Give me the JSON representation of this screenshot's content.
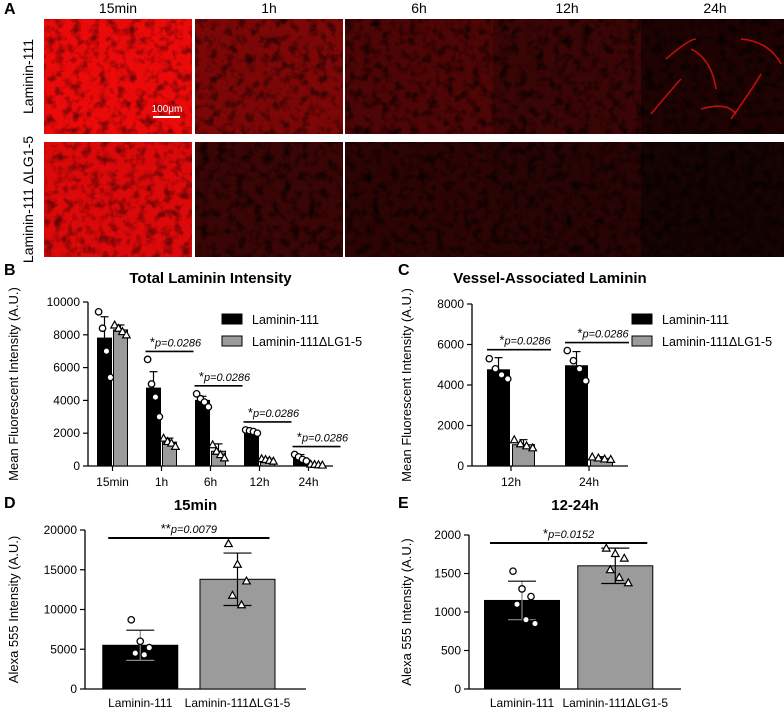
{
  "panel_a": {
    "letter": "A",
    "columns": [
      "15min",
      "1h",
      "6h",
      "12h",
      "24h"
    ],
    "rows": [
      "Laminin-111",
      "Laminin-111 ΔLG1-5"
    ],
    "scale_bar": "100μm",
    "image_brightness": [
      [
        0.95,
        0.6,
        0.4,
        0.3,
        0.12
      ],
      [
        0.9,
        0.3,
        0.22,
        0.18,
        0.04
      ]
    ]
  },
  "colors": {
    "laminin111": "#000000",
    "dlg": "#9b9b9b",
    "fluor": "#ff1a1a"
  },
  "chart_data": [
    {
      "id": "B",
      "letter": "B",
      "type": "bar",
      "title": "Total Laminin Intensity",
      "ylabel": "Mean Fluorescent Intensity (A.U.)",
      "xlabel": "",
      "categories": [
        "15min",
        "1h",
        "6h",
        "12h",
        "24h"
      ],
      "ylim": [
        0,
        10000
      ],
      "yticks": [
        0,
        2000,
        4000,
        6000,
        8000,
        10000
      ],
      "series": [
        {
          "name": "Laminin-111",
          "color": "#000000",
          "marker": "circle",
          "values": [
            7800,
            4750,
            4000,
            2100,
            500
          ],
          "err": [
            1300,
            1000,
            250,
            100,
            200
          ],
          "points": [
            [
              9400,
              8400,
              7000,
              5400
            ],
            [
              6500,
              5000,
              4200,
              3000
            ],
            [
              4400,
              4100,
              3900,
              3600
            ],
            [
              2200,
              2150,
              2100,
              2000
            ],
            [
              700,
              550,
              400,
              300
            ]
          ]
        },
        {
          "name": "Laminin-111ΔLG1-5",
          "color": "#9b9b9b",
          "marker": "triangle",
          "values": [
            8300,
            1450,
            900,
            380,
            90
          ],
          "err": [
            300,
            250,
            450,
            100,
            30
          ],
          "points": [
            [
              8600,
              8400,
              8200,
              8000
            ],
            [
              1700,
              1500,
              1400,
              1200
            ],
            [
              1300,
              900,
              700,
              500
            ],
            [
              450,
              400,
              350,
              300
            ],
            [
              120,
              100,
              80,
              60
            ]
          ]
        }
      ],
      "annotations": [
        {
          "mark": "*",
          "text": "p=0.0286",
          "cat": 1
        },
        {
          "mark": "*",
          "text": "p=0.0286",
          "cat": 2
        },
        {
          "mark": "*",
          "text": "p=0.0286",
          "cat": 3
        },
        {
          "mark": "*",
          "text": "p=0.0286",
          "cat": 4
        }
      ],
      "legend": "top-right"
    },
    {
      "id": "C",
      "letter": "C",
      "type": "bar",
      "title": "Vessel-Associated Laminin",
      "ylabel": "Mean Fluorescent Intensity (A.U.)",
      "xlabel": "",
      "categories": [
        "12h",
        "24h"
      ],
      "ylim": [
        0,
        8000
      ],
      "yticks": [
        0,
        2000,
        4000,
        6000,
        8000
      ],
      "series": [
        {
          "name": "Laminin-111",
          "color": "#000000",
          "marker": "circle",
          "values": [
            4750,
            4950
          ],
          "err": [
            600,
            700
          ],
          "points": [
            [
              5300,
              4800,
              4500,
              4300
            ],
            [
              5700,
              5200,
              4800,
              4200
            ]
          ]
        },
        {
          "name": "Laminin-111ΔLG1-5",
          "color": "#9b9b9b",
          "marker": "triangle",
          "values": [
            1050,
            380
          ],
          "err": [
            250,
            80
          ],
          "points": [
            [
              1300,
              1100,
              1000,
              900
            ],
            [
              450,
              400,
              350,
              330
            ]
          ]
        }
      ],
      "annotations": [
        {
          "mark": "*",
          "text": "p=0.0286",
          "cat": 0
        },
        {
          "mark": "*",
          "text": "p=0.0286",
          "cat": 1
        }
      ],
      "legend": "top-right"
    },
    {
      "id": "D",
      "letter": "D",
      "type": "bar",
      "title": "15min",
      "ylabel": "Alexa 555 Intensity (A.U.)",
      "xlabel": "",
      "categories": [
        "Laminin-111",
        "Laminin-111ΔLG1-5"
      ],
      "ylim": [
        0,
        20000
      ],
      "yticks": [
        0,
        5000,
        10000,
        15000,
        20000
      ],
      "bars": [
        {
          "value": 5500,
          "err": 1900,
          "color": "#000000",
          "marker": "circle",
          "points": [
            8700,
            6000,
            5200,
            4500,
            4300
          ]
        },
        {
          "value": 13800,
          "err": 3300,
          "color": "#9b9b9b",
          "marker": "triangle",
          "points": [
            18300,
            15700,
            13600,
            11800,
            10600
          ]
        }
      ],
      "annotation": {
        "mark": "**",
        "text": "p=0.0079"
      }
    },
    {
      "id": "E",
      "letter": "E",
      "type": "bar",
      "title": "12-24h",
      "ylabel": "Alexa 555 Intensity (A.U.)",
      "xlabel": "",
      "categories": [
        "Laminin-111",
        "Laminin-111ΔLG1-5"
      ],
      "ylim": [
        0,
        2000
      ],
      "yticks": [
        0,
        500,
        1000,
        1500,
        2000
      ],
      "bars": [
        {
          "value": 1150,
          "err": 250,
          "color": "#000000",
          "marker": "circle",
          "points": [
            1530,
            1300,
            1200,
            1100,
            900,
            850
          ]
        },
        {
          "value": 1600,
          "err": 230,
          "color": "#9b9b9b",
          "marker": "triangle",
          "points": [
            1830,
            1760,
            1700,
            1550,
            1450,
            1380
          ]
        }
      ],
      "annotation": {
        "mark": "*",
        "text": "p=0.0152"
      }
    }
  ]
}
